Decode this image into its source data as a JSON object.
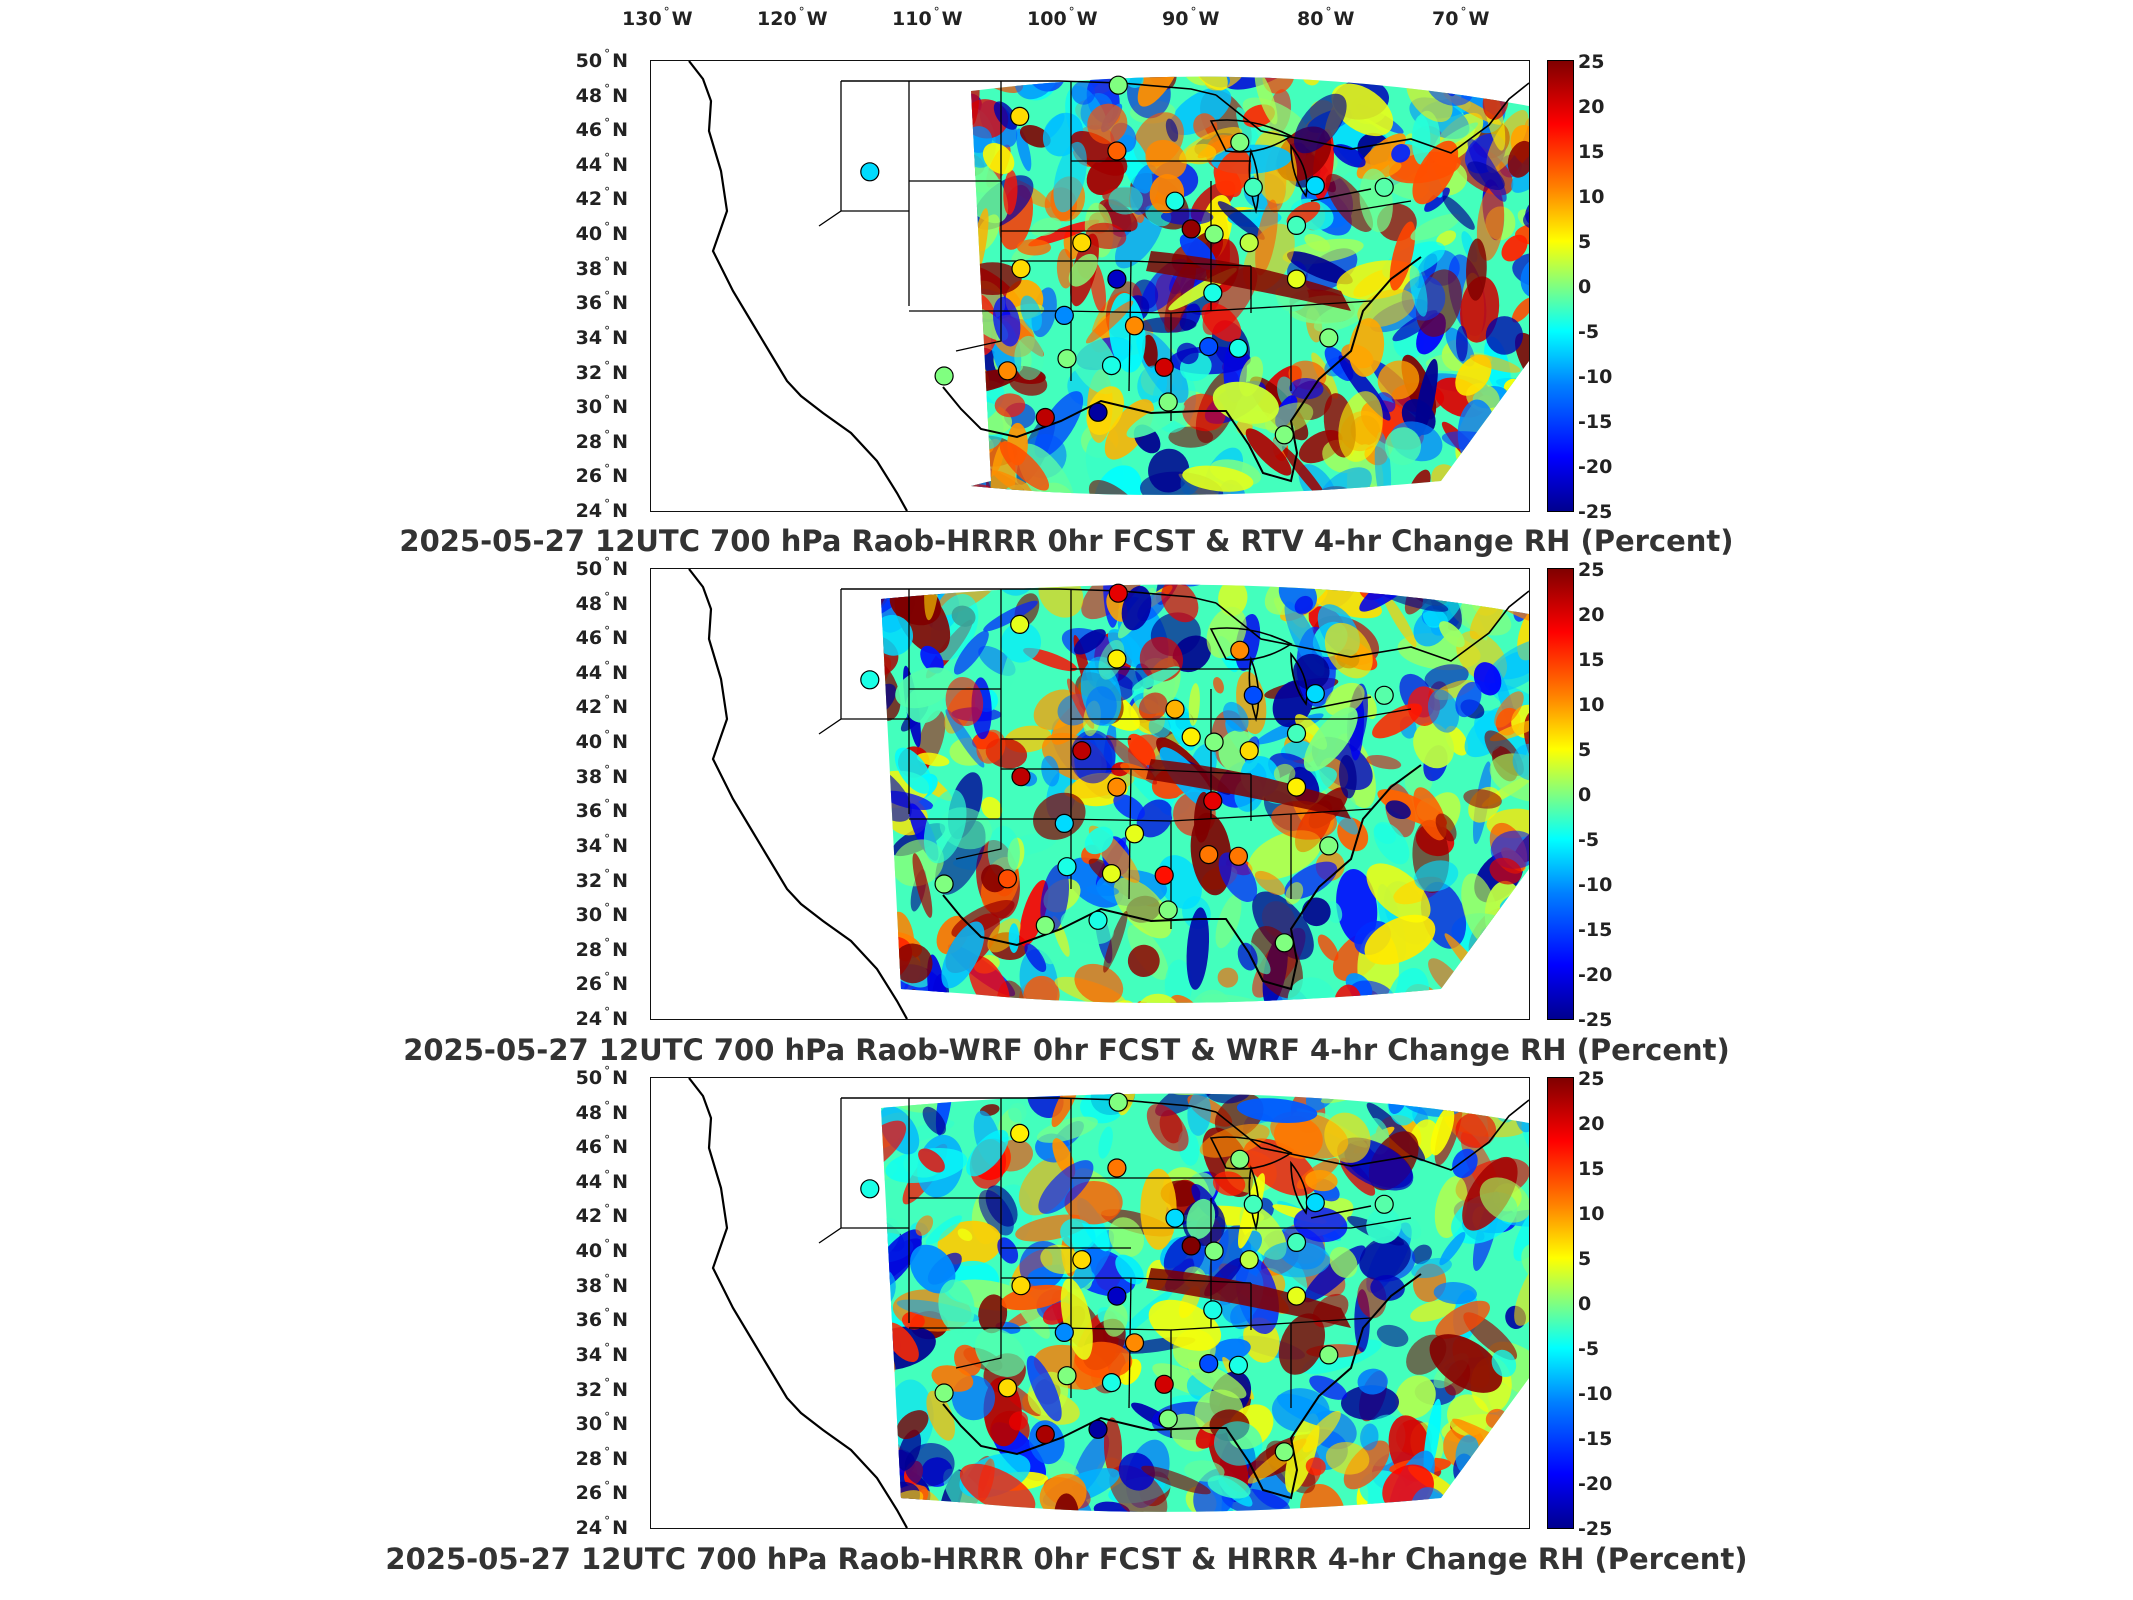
{
  "longitude_ticks": [
    {
      "value": "130",
      "hemi": "W"
    },
    {
      "value": "120",
      "hemi": "W"
    },
    {
      "value": "110",
      "hemi": "W"
    },
    {
      "value": "100",
      "hemi": "W"
    },
    {
      "value": "90",
      "hemi": "W"
    },
    {
      "value": "80",
      "hemi": "W"
    },
    {
      "value": "70",
      "hemi": "W"
    }
  ],
  "latitude_ticks": [
    {
      "value": "50",
      "hemi": "N"
    },
    {
      "value": "48",
      "hemi": "N"
    },
    {
      "value": "46",
      "hemi": "N"
    },
    {
      "value": "44",
      "hemi": "N"
    },
    {
      "value": "42",
      "hemi": "N"
    },
    {
      "value": "40",
      "hemi": "N"
    },
    {
      "value": "38",
      "hemi": "N"
    },
    {
      "value": "36",
      "hemi": "N"
    },
    {
      "value": "34",
      "hemi": "N"
    },
    {
      "value": "32",
      "hemi": "N"
    },
    {
      "value": "30",
      "hemi": "N"
    },
    {
      "value": "28",
      "hemi": "N"
    },
    {
      "value": "26",
      "hemi": "N"
    },
    {
      "value": "24",
      "hemi": "N"
    }
  ],
  "colorbar": {
    "ticks": [
      "25",
      "20",
      "15",
      "10",
      "5",
      "0",
      "-5",
      "-10",
      "-15",
      "-20",
      "-25"
    ],
    "colors": [
      "#00008f",
      "#0000ff",
      "#0080ff",
      "#00ffff",
      "#80ff80",
      "#ffff00",
      "#ff8000",
      "#ff0000",
      "#800000"
    ]
  },
  "panels": [
    {
      "title": "2025-05-27 12UTC 700 hPa Raob-HRRR 0hr FCST & RTV 4-hr Change RH (Percent)"
    },
    {
      "title": "2025-05-27 12UTC 700 hPa Raob-WRF 0hr FCST & WRF 4-hr Change RH (Percent)"
    },
    {
      "title": "2025-05-27 12UTC 700 hPa Raob-HRRR 0hr FCST & HRRR 4-hr Change RH (Percent)"
    }
  ],
  "chart_data": {
    "type": "map",
    "variable": "RH (Percent)",
    "colorbar_range": [
      -25,
      25
    ],
    "raob_stations": [
      {
        "lon": -111.9,
        "lat": 43.6,
        "panels": [
          -8,
          -5,
          -5
        ]
      },
      {
        "lon": -100.8,
        "lat": 46.8,
        "panels": [
          8,
          5,
          7
        ]
      },
      {
        "lon": -93.6,
        "lat": 44.8,
        "panels": [
          14,
          7,
          13
        ]
      },
      {
        "lon": -93.5,
        "lat": 48.6,
        "panels": [
          0,
          20,
          0
        ]
      },
      {
        "lon": -84.5,
        "lat": 45.3,
        "panels": [
          0,
          12,
          0
        ]
      },
      {
        "lon": -83.5,
        "lat": 42.7,
        "panels": [
          -3,
          -15,
          -3
        ]
      },
      {
        "lon": -78.9,
        "lat": 42.8,
        "panels": [
          -8,
          -8,
          -8
        ]
      },
      {
        "lon": -73.8,
        "lat": 42.7,
        "panels": [
          -2,
          -2,
          -2
        ]
      },
      {
        "lon": -89.3,
        "lat": 41.9,
        "panels": [
          -5,
          10,
          -8
        ]
      },
      {
        "lon": -88.1,
        "lat": 40.3,
        "panels": [
          24,
          7,
          25
        ]
      },
      {
        "lon": -86.4,
        "lat": 40.0,
        "panels": [
          0,
          0,
          0
        ]
      },
      {
        "lon": -83.8,
        "lat": 39.5,
        "panels": [
          3,
          8,
          3
        ]
      },
      {
        "lon": -80.3,
        "lat": 40.5,
        "panels": [
          -3,
          -3,
          -3
        ]
      },
      {
        "lon": -96.2,
        "lat": 39.5,
        "panels": [
          8,
          22,
          8
        ]
      },
      {
        "lon": -100.7,
        "lat": 38.0,
        "panels": [
          8,
          22,
          8
        ]
      },
      {
        "lon": -93.6,
        "lat": 37.4,
        "panels": [
          -22,
          12,
          -22
        ]
      },
      {
        "lon": -80.3,
        "lat": 37.4,
        "panels": [
          5,
          7,
          5
        ]
      },
      {
        "lon": -86.5,
        "lat": 36.6,
        "panels": [
          -5,
          20,
          -5
        ]
      },
      {
        "lon": -97.5,
        "lat": 35.3,
        "panels": [
          -12,
          -8,
          -12
        ]
      },
      {
        "lon": -92.3,
        "lat": 34.7,
        "panels": [
          12,
          5,
          12
        ]
      },
      {
        "lon": -86.8,
        "lat": 33.5,
        "panels": [
          -15,
          13,
          -15
        ]
      },
      {
        "lon": -84.6,
        "lat": 33.4,
        "panels": [
          -5,
          13,
          -5
        ]
      },
      {
        "lon": -77.9,
        "lat": 34.0,
        "panels": [
          0,
          0,
          0
        ]
      },
      {
        "lon": -101.7,
        "lat": 32.1,
        "panels": [
          12,
          15,
          8
        ]
      },
      {
        "lon": -97.3,
        "lat": 32.8,
        "panels": [
          0,
          -5,
          0
        ]
      },
      {
        "lon": -94.0,
        "lat": 32.4,
        "panels": [
          -5,
          5,
          -5
        ]
      },
      {
        "lon": -90.1,
        "lat": 32.3,
        "panels": [
          21,
          18,
          21
        ]
      },
      {
        "lon": -106.4,
        "lat": 31.8,
        "panels": [
          0,
          0,
          0
        ]
      },
      {
        "lon": -89.8,
        "lat": 30.3,
        "panels": [
          0,
          0,
          0
        ]
      },
      {
        "lon": -98.9,
        "lat": 29.4,
        "panels": [
          22,
          0,
          23
        ]
      },
      {
        "lon": -95.0,
        "lat": 29.7,
        "panels": [
          -24,
          -5,
          -24
        ]
      },
      {
        "lon": -81.2,
        "lat": 28.4,
        "panels": [
          0,
          0,
          0
        ]
      }
    ]
  }
}
